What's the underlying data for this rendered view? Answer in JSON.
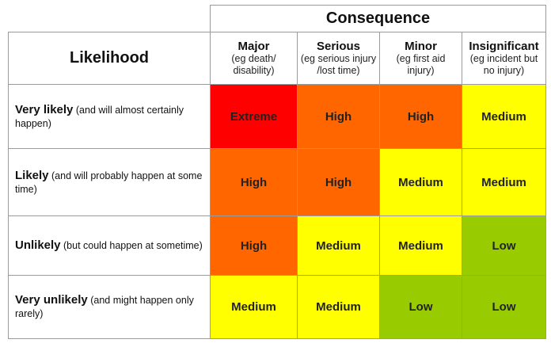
{
  "consequence_title": "Consequence",
  "likelihood_title": "Likelihood",
  "consequences": [
    {
      "title": "Major",
      "desc": "(eg death/ disability)"
    },
    {
      "title": "Serious",
      "desc": "(eg serious injury /lost time)"
    },
    {
      "title": "Minor",
      "desc": "(eg first aid injury)"
    },
    {
      "title": "Insignificant",
      "desc": "(eg incident but no injury)"
    }
  ],
  "likelihoods": [
    {
      "title": "Very likely",
      "desc": " (and will almost certainly happen)"
    },
    {
      "title": "Likely",
      "desc": " (and will probably happen at some time)"
    },
    {
      "title": "Unlikely",
      "desc": " (but could happen at sometime)"
    },
    {
      "title": "Very unlikely",
      "desc": " (and might happen only rarely)"
    }
  ],
  "ratings": [
    [
      "Extreme",
      "High",
      "High",
      "Medium"
    ],
    [
      "High",
      "High",
      "Medium",
      "Medium"
    ],
    [
      "High",
      "Medium",
      "Medium",
      "Low"
    ],
    [
      "Medium",
      "Medium",
      "Low",
      "Low"
    ]
  ],
  "rating_colors": {
    "Extreme": "#ff0000",
    "High": "#ff6600",
    "Medium": "#ffff00",
    "Low": "#99cc00"
  }
}
